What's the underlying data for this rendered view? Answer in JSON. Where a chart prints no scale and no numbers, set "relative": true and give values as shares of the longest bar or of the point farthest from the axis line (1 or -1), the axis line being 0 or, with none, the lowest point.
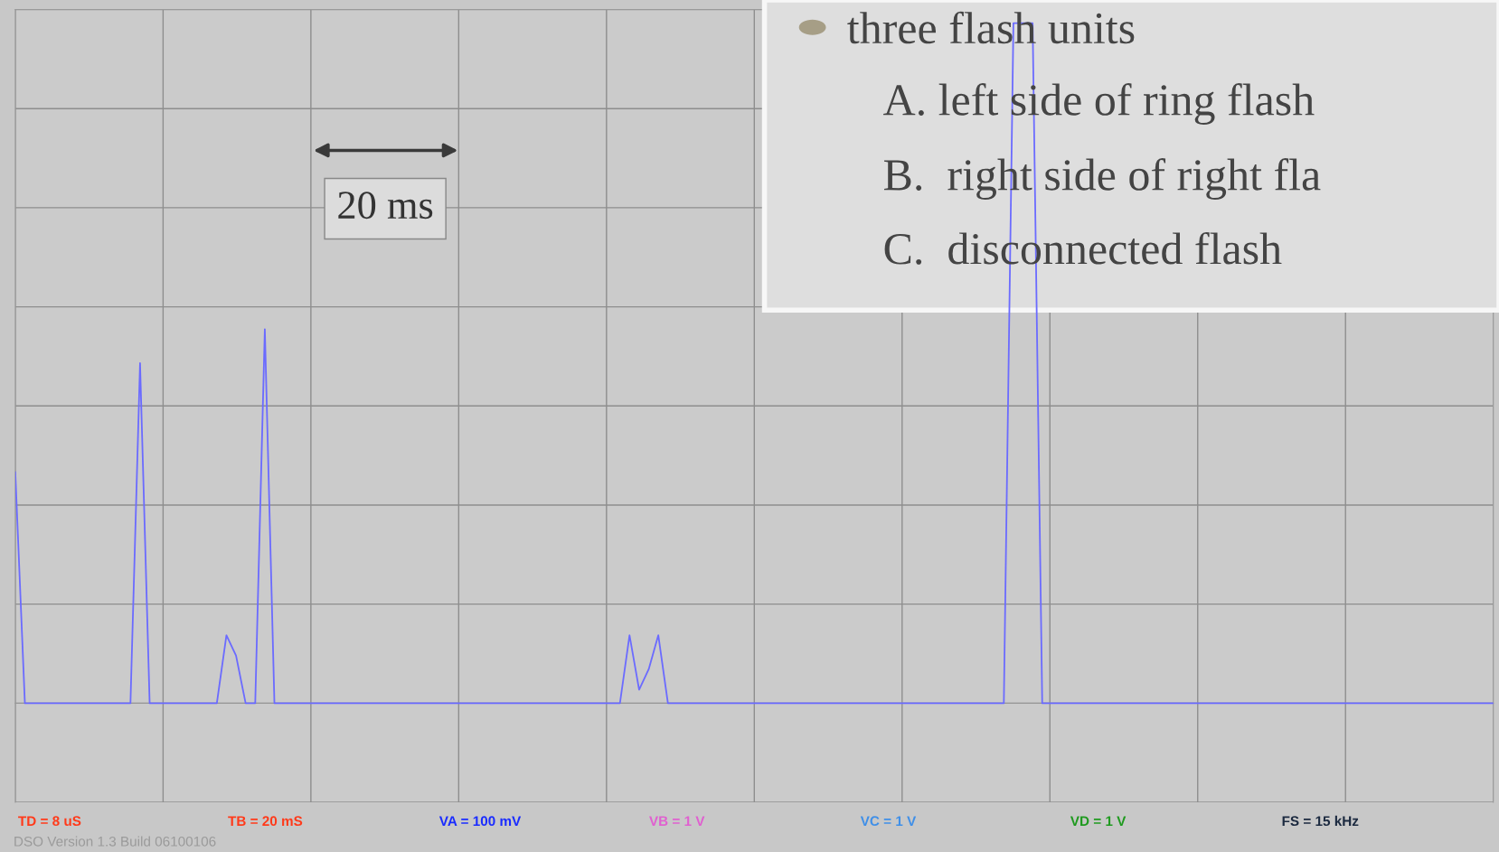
{
  "chart_data": {
    "type": "line",
    "relative": true,
    "grid": true,
    "categories": [
      null,
      null,
      null,
      null,
      null,
      null,
      null,
      null,
      null,
      null,
      null,
      null,
      null,
      null,
      null,
      null,
      null,
      null,
      null,
      null,
      null,
      null,
      null,
      null,
      null,
      null,
      null,
      null,
      null,
      null,
      null,
      null,
      null,
      null,
      null,
      null,
      null,
      null,
      null,
      null,
      null,
      null,
      null,
      null,
      null,
      null,
      null,
      null,
      null,
      null,
      null,
      null,
      null,
      null,
      null,
      null,
      null,
      null,
      null,
      null,
      null,
      null,
      null,
      null,
      null,
      null,
      null,
      null,
      null,
      null,
      null,
      null,
      null,
      null,
      null,
      null,
      null,
      null,
      null,
      null,
      null,
      null,
      null,
      null,
      null,
      null,
      null,
      null,
      null,
      null,
      null,
      null,
      null,
      null,
      null,
      null,
      null,
      null,
      null,
      null,
      null,
      null,
      null,
      null,
      null,
      null,
      null,
      null,
      null,
      null,
      null,
      null,
      null,
      null,
      null,
      null,
      null,
      null,
      null,
      null,
      null,
      null,
      null,
      null,
      null,
      null,
      null,
      null,
      null,
      null,
      null,
      null,
      null,
      null,
      null,
      null,
      null,
      null,
      null,
      null,
      null,
      null,
      null,
      null,
      null,
      null,
      null,
      null,
      null,
      null,
      null,
      null,
      null,
      null,
      null
    ],
    "series": [
      {
        "color": "#6b6bff",
        "values": [
          0.34,
          0,
          0,
          0,
          0,
          0,
          0,
          0,
          0,
          0,
          0,
          0,
          0,
          0.5,
          0,
          0,
          0,
          0,
          0,
          0,
          0,
          0,
          0.1,
          0.07,
          0,
          0,
          0.55,
          0,
          0,
          0,
          0,
          0,
          0,
          0,
          0,
          0,
          0,
          0,
          0,
          0,
          0,
          0,
          0,
          0,
          0,
          0,
          0,
          0,
          0,
          0,
          0,
          0,
          0,
          0,
          0,
          0,
          0,
          0,
          0,
          0,
          0,
          0,
          0,
          0,
          0.1,
          0.02,
          0.05,
          0.1,
          0,
          0,
          0,
          0,
          0,
          0,
          0,
          0,
          0,
          0,
          0,
          0,
          0,
          0,
          0,
          0,
          0,
          0,
          0,
          0,
          0,
          0,
          0,
          0,
          0,
          0,
          0,
          0,
          0,
          0,
          0,
          0,
          0,
          0,
          0,
          0,
          1,
          1,
          1,
          0,
          0,
          0,
          0,
          0,
          0,
          0,
          0,
          0,
          0,
          0,
          0,
          0,
          0,
          0,
          0,
          0,
          0,
          0,
          0,
          0,
          0,
          0,
          0,
          0,
          0,
          0,
          0,
          0,
          0,
          0,
          0,
          0,
          0,
          0,
          0,
          0,
          0,
          0,
          0,
          0,
          0,
          0,
          0,
          0,
          0,
          0,
          0
        ]
      }
    ],
    "annotations": [
      "20 ms",
      "three flash units",
      "A. left side of ring flash",
      "B.  right side of right fla",
      "C.  disconnected flash",
      "TD = 8 uS",
      "TB = 20 mS",
      "VA = 100 mV",
      "VB = 1 V",
      "VC = 1 V",
      "VD = 1 V",
      "FS = 15 kHz",
      "DSO Version 1.3 Build 06100106"
    ]
  }
}
